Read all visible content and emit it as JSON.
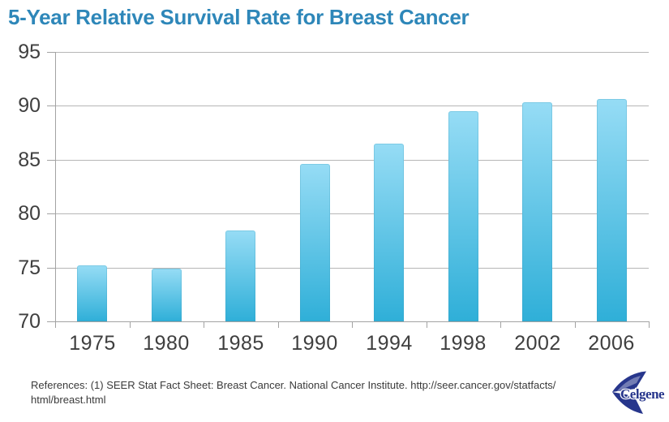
{
  "chart_data": {
    "type": "bar",
    "title": "5-Year Relative Survival Rate for Breast Cancer",
    "categories": [
      "1975",
      "1980",
      "1985",
      "1990",
      "1994",
      "1998",
      "2002",
      "2006"
    ],
    "values": [
      75.2,
      74.9,
      78.4,
      84.6,
      86.5,
      89.5,
      90.3,
      90.6
    ],
    "xlabel": "",
    "ylabel": "",
    "ylim": [
      70,
      95
    ],
    "yticks": [
      70,
      75,
      80,
      85,
      90,
      95
    ],
    "grid": true,
    "legend_position": "none",
    "bar_gradient_top": "#96DCF5",
    "bar_gradient_bottom": "#2FAFD8"
  },
  "colors": {
    "title": "#2E87B9",
    "axis_text": "#3F3F3F",
    "grid_line": "#B6B6B6",
    "axis_line": "#A3A3A3"
  },
  "footer": {
    "references_line1": "References: (1) SEER Stat Fact Sheet: Breast Cancer. National Cancer Institute. http://seer.cancer.gov/statfacts/",
    "references_line2": "html/breast.html"
  },
  "logo": {
    "text": "Celgene",
    "color": "#27368C"
  }
}
